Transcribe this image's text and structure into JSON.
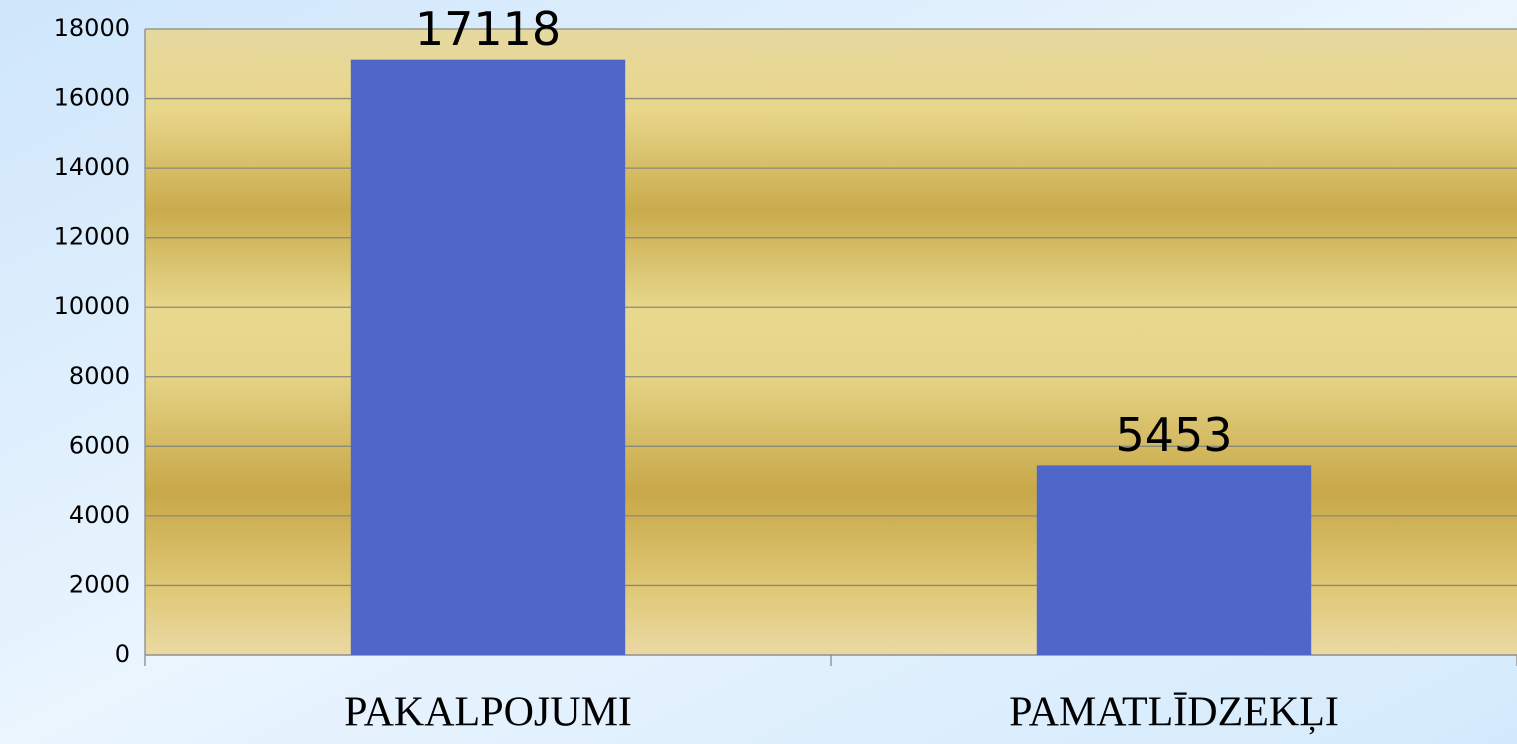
{
  "chart_data": {
    "type": "bar",
    "categories": [
      "PAKALPOJUMI",
      "PAMATLĪDZEKĻI"
    ],
    "values": [
      17118,
      5453
    ],
    "color": "#4f67c8",
    "ylim": [
      0,
      18000
    ],
    "yticks": [
      0,
      2000,
      4000,
      6000,
      8000,
      10000,
      12000,
      14000,
      16000,
      18000
    ],
    "grid": true
  }
}
